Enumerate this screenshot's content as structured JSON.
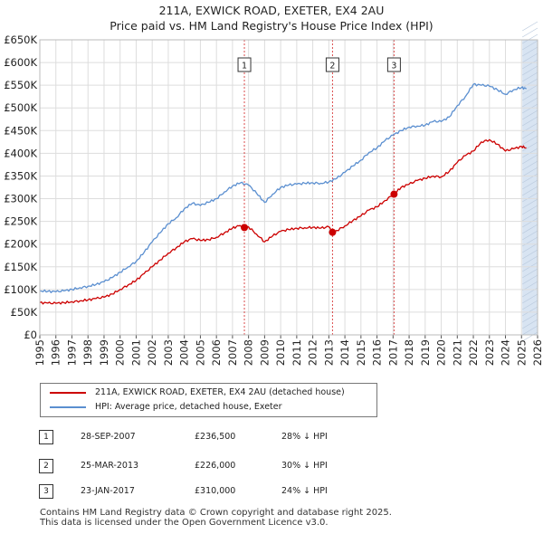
{
  "title": {
    "line1": "211A, EXWICK ROAD, EXETER, EX4 2AU",
    "line2": "Price paid vs. HM Land Registry's House Price Index (HPI)"
  },
  "colors": {
    "property": "#cc0000",
    "hpi": "#5b8fd0",
    "shade": "#d8e4f2",
    "marker_line": "#cc0000",
    "grid": "#dddddd"
  },
  "chart_data": {
    "type": "line",
    "title": "Price paid vs. HM Land Registry's House Price Index (HPI)",
    "xlabel": "",
    "ylabel": "",
    "xlim": [
      1995,
      2026
    ],
    "ylim": [
      0,
      650000
    ],
    "y_ticks": [
      {
        "value": 0,
        "label": "£0"
      },
      {
        "value": 50000,
        "label": "£50K"
      },
      {
        "value": 100000,
        "label": "£100K"
      },
      {
        "value": 150000,
        "label": "£150K"
      },
      {
        "value": 200000,
        "label": "£200K"
      },
      {
        "value": 250000,
        "label": "£250K"
      },
      {
        "value": 300000,
        "label": "£300K"
      },
      {
        "value": 350000,
        "label": "£350K"
      },
      {
        "value": 400000,
        "label": "£400K"
      },
      {
        "value": 450000,
        "label": "£450K"
      },
      {
        "value": 500000,
        "label": "£500K"
      },
      {
        "value": 550000,
        "label": "£550K"
      },
      {
        "value": 600000,
        "label": "£600K"
      },
      {
        "value": 650000,
        "label": "£650K"
      }
    ],
    "x_ticks": [
      "1995",
      "1996",
      "1997",
      "1998",
      "1999",
      "2000",
      "2001",
      "2002",
      "2003",
      "2004",
      "2005",
      "2006",
      "2007",
      "2008",
      "2009",
      "2010",
      "2011",
      "2012",
      "2013",
      "2014",
      "2015",
      "2016",
      "2017",
      "2018",
      "2019",
      "2020",
      "2021",
      "2022",
      "2023",
      "2024",
      "2025",
      "2026"
    ],
    "forecast_start": 2025.05,
    "series": [
      {
        "name": "211A, EXWICK ROAD, EXETER, EX4 2AU (detached house)",
        "color": "#cc0000",
        "x": [
          1995,
          1995.5,
          1996,
          1996.5,
          1997,
          1997.5,
          1998,
          1998.5,
          1999,
          1999.5,
          2000,
          2000.5,
          2001,
          2001.5,
          2002,
          2002.5,
          2003,
          2003.5,
          2004,
          2004.5,
          2005,
          2005.5,
          2006,
          2006.5,
          2007,
          2007.4,
          2007.74,
          2008,
          2008.5,
          2009,
          2009.5,
          2010,
          2010.5,
          2011,
          2011.5,
          2012,
          2012.5,
          2013,
          2013.23,
          2013.5,
          2014,
          2014.5,
          2015,
          2015.5,
          2016,
          2016.5,
          2017.06,
          2017.5,
          2018,
          2018.5,
          2019,
          2019.5,
          2020,
          2020.5,
          2021,
          2021.5,
          2022,
          2022.5,
          2023,
          2023.5,
          2024,
          2024.5,
          2025,
          2025.3
        ],
        "values": [
          71000,
          70000,
          69500,
          71000,
          73000,
          75000,
          77000,
          80000,
          83000,
          90000,
          100000,
          110000,
          120000,
          135000,
          150000,
          165000,
          180000,
          192000,
          205000,
          212000,
          208000,
          210000,
          215000,
          225000,
          235000,
          240000,
          236500,
          238000,
          222000,
          205000,
          218000,
          228000,
          232000,
          235000,
          236000,
          237000,
          235000,
          238000,
          226000,
          230000,
          240000,
          252000,
          262000,
          275000,
          282000,
          296000,
          310000,
          325000,
          332000,
          340000,
          345000,
          350000,
          348000,
          360000,
          380000,
          395000,
          405000,
          425000,
          430000,
          420000,
          405000,
          410000,
          415000,
          412000
        ]
      },
      {
        "name": "HPI: Average price, detached house, Exeter",
        "color": "#5b8fd0",
        "x": [
          1995,
          1995.5,
          1996,
          1996.5,
          1997,
          1997.5,
          1998,
          1998.5,
          1999,
          1999.5,
          2000,
          2000.5,
          2001,
          2001.5,
          2002,
          2002.5,
          2003,
          2003.5,
          2004,
          2004.5,
          2005,
          2005.5,
          2006,
          2006.5,
          2007,
          2007.5,
          2008,
          2008.5,
          2009,
          2009.5,
          2010,
          2010.5,
          2011,
          2011.5,
          2012,
          2012.5,
          2013,
          2013.5,
          2014,
          2014.5,
          2015,
          2015.5,
          2016,
          2016.5,
          2017,
          2017.5,
          2018,
          2018.5,
          2019,
          2019.5,
          2020,
          2020.5,
          2021,
          2021.5,
          2022,
          2022.5,
          2023,
          2023.5,
          2024,
          2024.5,
          2025,
          2025.3
        ],
        "values": [
          97000,
          96000,
          95000,
          97000,
          100000,
          104000,
          107000,
          111000,
          117000,
          126000,
          138000,
          150000,
          162000,
          182000,
          205000,
          225000,
          245000,
          258000,
          278000,
          290000,
          285000,
          292000,
          300000,
          315000,
          328000,
          335000,
          330000,
          312000,
          292000,
          310000,
          325000,
          330000,
          332000,
          334000,
          335000,
          334000,
          337000,
          345000,
          358000,
          372000,
          385000,
          402000,
          412000,
          428000,
          440000,
          450000,
          458000,
          460000,
          462000,
          470000,
          470000,
          480000,
          505000,
          525000,
          552000,
          550000,
          548000,
          540000,
          530000,
          540000,
          545000,
          542000
        ]
      }
    ],
    "markers": [
      {
        "id": "1",
        "x": 2007.74,
        "value": 236500
      },
      {
        "id": "2",
        "x": 2013.23,
        "value": 226000
      },
      {
        "id": "3",
        "x": 2017.06,
        "value": 310000
      }
    ]
  },
  "legend": {
    "property_label": "211A, EXWICK ROAD, EXETER, EX4 2AU (detached house)",
    "hpi_label": "HPI: Average price, detached house, Exeter"
  },
  "transactions": [
    {
      "id": "1",
      "date": "28-SEP-2007",
      "price": "£236,500",
      "hpi": "28% ↓ HPI"
    },
    {
      "id": "2",
      "date": "25-MAR-2013",
      "price": "£226,000",
      "hpi": "30% ↓ HPI"
    },
    {
      "id": "3",
      "date": "23-JAN-2017",
      "price": "£310,000",
      "hpi": "24% ↓ HPI"
    }
  ],
  "footer": {
    "line1": "Contains HM Land Registry data © Crown copyright and database right 2025.",
    "line2": "This data is licensed under the Open Government Licence v3.0."
  }
}
